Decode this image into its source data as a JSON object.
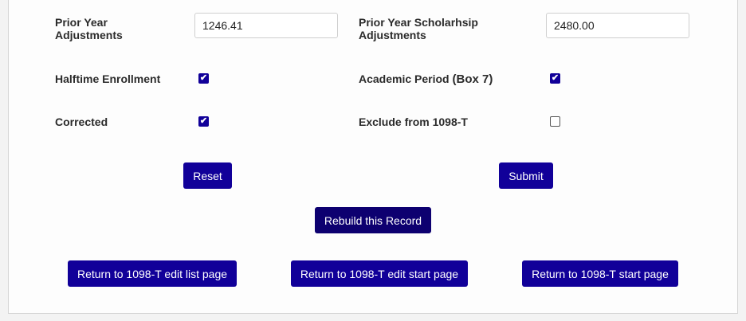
{
  "fields": {
    "prior_year_adjustments": {
      "label_line1": "Prior Year",
      "label_line2": "Adjustments",
      "value": "1246.41"
    },
    "prior_year_scholarship_adjustments": {
      "label_line1": "Prior Year Scholarhsip",
      "label_line2": "Adjustments",
      "value": "2480.00"
    }
  },
  "checkboxes": {
    "halftime_enrollment": {
      "label": "Halftime Enrollment",
      "checked": true
    },
    "academic_period": {
      "label": "Academic Period",
      "label_suffix": "(Box 7)",
      "checked": true
    },
    "corrected": {
      "label": "Corrected",
      "checked": true
    },
    "exclude_1098t": {
      "label": "Exclude from 1098-T",
      "checked": false
    }
  },
  "buttons": {
    "reset": "Reset",
    "submit": "Submit",
    "rebuild": "Rebuild this Record",
    "return_edit_list": "Return to 1098-T edit list page",
    "return_edit_start": "Return to 1098-T edit start page",
    "return_start": "Return to 1098-T start page"
  },
  "colors": {
    "button": "#110099",
    "button_dark": "#0d0070",
    "checkbox": "#110099"
  }
}
